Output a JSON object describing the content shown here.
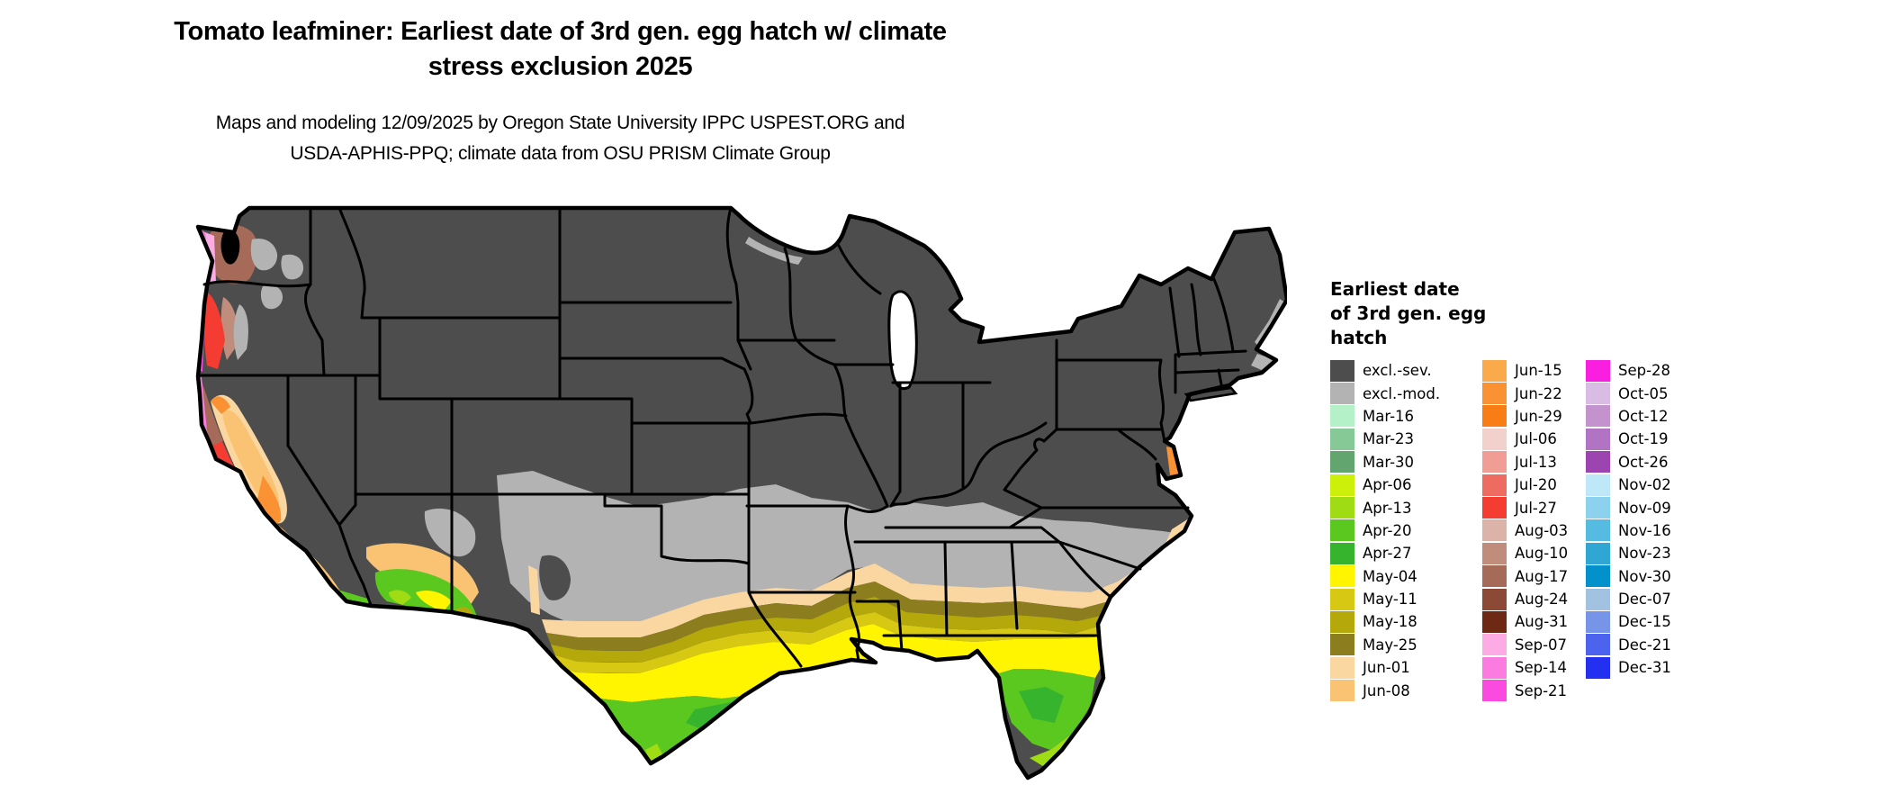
{
  "title": {
    "line1": "Tomato leafminer: Earliest date of 3rd gen. egg hatch w/ climate",
    "line2": "stress exclusion 2025"
  },
  "subtitle": {
    "line1": "Maps and modeling 12/09/2025 by Oregon State University IPPC USPEST.ORG and",
    "line2": "USDA-APHIS-PPQ; climate data from OSU PRISM Climate Group"
  },
  "legend": {
    "title_lines": [
      "Earliest date",
      "of 3rd gen. egg",
      "hatch"
    ],
    "columns": [
      {
        "entries": [
          {
            "label": "excl.-sev.",
            "color": "#4D4D4D"
          },
          {
            "label": "excl.-mod.",
            "color": "#B3B3B3"
          },
          {
            "label": "Mar-16",
            "color": "#B4F0C8"
          },
          {
            "label": "Mar-23",
            "color": "#86C996"
          },
          {
            "label": "Mar-30",
            "color": "#63A56E"
          },
          {
            "label": "Apr-06",
            "color": "#CCF00A"
          },
          {
            "label": "Apr-13",
            "color": "#A0DC14"
          },
          {
            "label": "Apr-20",
            "color": "#5AC81E"
          },
          {
            "label": "Apr-27",
            "color": "#37B42D"
          },
          {
            "label": "May-04",
            "color": "#FFF500"
          },
          {
            "label": "May-11",
            "color": "#D7C814"
          },
          {
            "label": "May-18",
            "color": "#B4A80A"
          },
          {
            "label": "May-25",
            "color": "#8C7D1E"
          },
          {
            "label": "Jun-01",
            "color": "#FAD7A0"
          },
          {
            "label": "Jun-08",
            "color": "#FAC373"
          }
        ]
      },
      {
        "entries": [
          {
            "label": "Jun-15",
            "color": "#FAA94B"
          },
          {
            "label": "Jun-22",
            "color": "#FA9133"
          },
          {
            "label": "Jun-29",
            "color": "#F87D14"
          },
          {
            "label": "Jul-06",
            "color": "#F2D0CB"
          },
          {
            "label": "Jul-13",
            "color": "#F09D96"
          },
          {
            "label": "Jul-20",
            "color": "#EE6B61"
          },
          {
            "label": "Jul-27",
            "color": "#F53C32"
          },
          {
            "label": "Aug-03",
            "color": "#DCB3A8"
          },
          {
            "label": "Aug-10",
            "color": "#C08D7C"
          },
          {
            "label": "Aug-17",
            "color": "#A56A58"
          },
          {
            "label": "Aug-24",
            "color": "#8C4A36"
          },
          {
            "label": "Aug-31",
            "color": "#6E2914"
          },
          {
            "label": "Sep-07",
            "color": "#FCABE4"
          },
          {
            "label": "Sep-14",
            "color": "#FB7BE1"
          },
          {
            "label": "Sep-21",
            "color": "#FA4ADF"
          }
        ]
      },
      {
        "entries": [
          {
            "label": "Sep-28",
            "color": "#FA1EE1"
          },
          {
            "label": "Oct-05",
            "color": "#D8BCE4"
          },
          {
            "label": "Oct-12",
            "color": "#C493CE"
          },
          {
            "label": "Oct-19",
            "color": "#B273C4"
          },
          {
            "label": "Oct-26",
            "color": "#9C44B0"
          },
          {
            "label": "Nov-02",
            "color": "#BEE8F8"
          },
          {
            "label": "Nov-09",
            "color": "#8CD2EE"
          },
          {
            "label": "Nov-16",
            "color": "#56BBE0"
          },
          {
            "label": "Nov-23",
            "color": "#2FA6D4"
          },
          {
            "label": "Nov-30",
            "color": "#0391CC"
          },
          {
            "label": "Dec-07",
            "color": "#A3C2E2"
          },
          {
            "label": "Dec-15",
            "color": "#7795E8"
          },
          {
            "label": "Dec-21",
            "color": "#4C63EE"
          },
          {
            "label": "Dec-31",
            "color": "#2330F0"
          }
        ]
      }
    ]
  },
  "chart_data": {
    "type": "heatmap",
    "title": "Tomato leafminer: Earliest date of 3rd gen. egg hatch w/ climate stress exclusion 2025",
    "subtitle": "Maps and modeling 12/09/2025 by Oregon State University IPPC USPEST.ORG and USDA-APHIS-PPQ; climate data from OSU PRISM Climate Group",
    "legend_title": "Earliest date of 3rd gen. egg hatch",
    "legend_position": "right",
    "categories": [
      "excl.-sev.",
      "excl.-mod.",
      "Mar-16",
      "Mar-23",
      "Mar-30",
      "Apr-06",
      "Apr-13",
      "Apr-20",
      "Apr-27",
      "May-04",
      "May-11",
      "May-18",
      "May-25",
      "Jun-01",
      "Jun-08",
      "Jun-15",
      "Jun-22",
      "Jun-29",
      "Jul-06",
      "Jul-13",
      "Jul-20",
      "Jul-27",
      "Aug-03",
      "Aug-10",
      "Aug-17",
      "Aug-24",
      "Aug-31",
      "Sep-07",
      "Sep-14",
      "Sep-21",
      "Sep-28",
      "Oct-05",
      "Oct-12",
      "Oct-19",
      "Oct-26",
      "Nov-02",
      "Nov-09",
      "Nov-16",
      "Nov-23",
      "Nov-30",
      "Dec-07",
      "Dec-15",
      "Dec-21",
      "Dec-31"
    ],
    "region": "contiguous United States"
  },
  "map": {
    "water_color": "#000000",
    "lake_color": "#FFFFFF",
    "border_color": "#000000",
    "region_values": {
      "base": "excl.-sev.",
      "south-gray-band": "excl.-mod.",
      "wtx-mountains": "excl.-sev.",
      "az-gray": "excl.-mod.",
      "band-jun01": "Jun-01",
      "band-may25": "May-25",
      "band-may18": "May-18",
      "band-may11": "May-11",
      "band-may04": "May-04",
      "tx-green": "Apr-20",
      "tx-green-coast": "Apr-27",
      "tx-tip-rim": "Apr-13",
      "la-delta-green": "Apr-27",
      "fl-green": "Apr-20",
      "fl-green-inner": "Apr-27",
      "fl-yellowgreen": "Apr-13",
      "fl-tip": "Mar-30",
      "fl-keys": "Mar-16",
      "ca-valley": "Jun-01",
      "ca-valley-inner": "Jun-08",
      "ca-valley-orange-south": "Jun-22",
      "ca-valley-orange-north": "Jun-22",
      "ca-coastrange-pink": "Jul-13",
      "ca-coastrange-red": "Jul-27",
      "ca-norcoast-brown": "Aug-17",
      "ca-coast-magenta": "Sep-14",
      "socal-peach": "Jun-08",
      "socal-red": "Jul-20",
      "imperial-green": "Apr-20",
      "az-orange-ring": "Jun-08",
      "az-green": "Apr-20",
      "az-yellow": "May-04",
      "az-yellowgreen": "Apr-13",
      "az-olive": "May-18",
      "nm-riogrande": "Jun-01",
      "wa-coast-magenta": "Sep-14",
      "wa-coast-pink": "Sep-07",
      "wa-brown": "Aug-17",
      "wa-gray": "excl.-mod.",
      "or-gray": "excl.-mod.",
      "or-coast-magenta": "Sep-21",
      "or-red": "Jul-27",
      "or-brown": "Aug-10",
      "channel-island-orange": "Jun-22",
      "channel-magenta": "Sep-21",
      "delmarva-orange": "Jun-22",
      "nc-coast-peach": "Jun-01",
      "maine-coast-gray": "excl.-mod.",
      "capecod-gray": "excl.-mod.",
      "superior-shore-gray": "excl.-mod.",
      "long-island": "excl.-sev."
    }
  }
}
